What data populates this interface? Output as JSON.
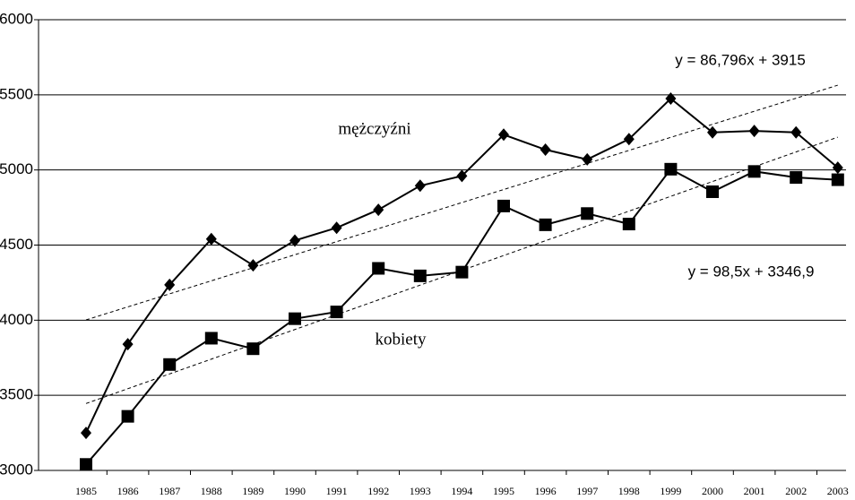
{
  "chart_data": {
    "type": "line",
    "categories": [
      "1985",
      "1986",
      "1987",
      "1988",
      "1989",
      "1990",
      "1991",
      "1992",
      "1993",
      "1994",
      "1995",
      "1996",
      "1997",
      "1998",
      "1999",
      "2000",
      "2001",
      "2002",
      "2003"
    ],
    "series": [
      {
        "name": "mężczyźni",
        "color": "#000000",
        "marker": "diamond",
        "values": [
          3250,
          3840,
          4235,
          4540,
          4365,
          4530,
          4615,
          4735,
          4895,
          4960,
          5235,
          5135,
          5070,
          5205,
          5475,
          5250,
          5260,
          5250,
          5015
        ],
        "trend": {
          "label": "y = 86,796x + 3915",
          "slope": 86.796,
          "intercept": 3915
        }
      },
      {
        "name": "kobiety",
        "color": "#000000",
        "marker": "square",
        "values": [
          3040,
          3360,
          3705,
          3880,
          3810,
          4010,
          4055,
          4345,
          4295,
          4320,
          4760,
          4635,
          4710,
          4640,
          5005,
          4855,
          4990,
          4950,
          4935
        ],
        "trend": {
          "label": "y = 98,5x + 3346,9",
          "slope": 98.5,
          "intercept": 3346.9
        }
      }
    ],
    "ylim": [
      3000,
      6000
    ],
    "yticks": [
      3000,
      3500,
      4000,
      4500,
      5000,
      5500,
      6000
    ],
    "grid": true
  }
}
